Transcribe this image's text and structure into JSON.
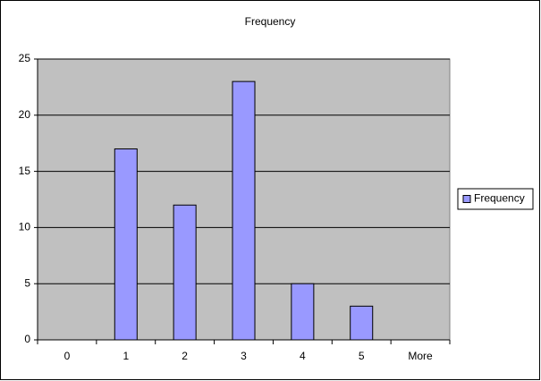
{
  "chart_data": {
    "type": "bar",
    "title": "Frequency",
    "categories": [
      "0",
      "1",
      "2",
      "3",
      "4",
      "5",
      "More"
    ],
    "series": [
      {
        "name": "Frequency",
        "color": "#9999ff",
        "values": [
          0,
          17,
          12,
          23,
          5,
          3,
          0
        ]
      }
    ],
    "ylim": [
      0,
      25
    ],
    "yticks": [
      0,
      5,
      10,
      15,
      20,
      25
    ],
    "grid": true,
    "legend": "right"
  }
}
